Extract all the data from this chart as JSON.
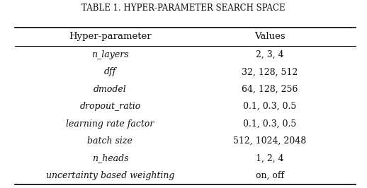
{
  "title": "TABLE 1. HYPER-PARAMETER SEARCH SPACE",
  "title_display": "TABLE 1. HYPER-PARAMETER SEARCH SPACE",
  "col_headers": [
    "Hyper-parameter",
    "Values"
  ],
  "rows": [
    [
      "n_layers",
      "2, 3, 4"
    ],
    [
      "dff",
      "32, 128, 512"
    ],
    [
      "dmodel",
      "64, 128, 256"
    ],
    [
      "dropout_ratio",
      "0.1, 0.3, 0.5"
    ],
    [
      "learning rate factor",
      "0.1, 0.3, 0.5"
    ],
    [
      "batch size",
      "512, 1024, 2048"
    ],
    [
      "n_heads",
      "1, 2, 4"
    ],
    [
      "uncertainty based weighting",
      "on, off"
    ]
  ],
  "text_color": "#111111",
  "title_fontsize": 8.5,
  "header_fontsize": 9.5,
  "row_fontsize": 9.0,
  "fig_width": 5.18,
  "fig_height": 2.66,
  "dpi": 100
}
